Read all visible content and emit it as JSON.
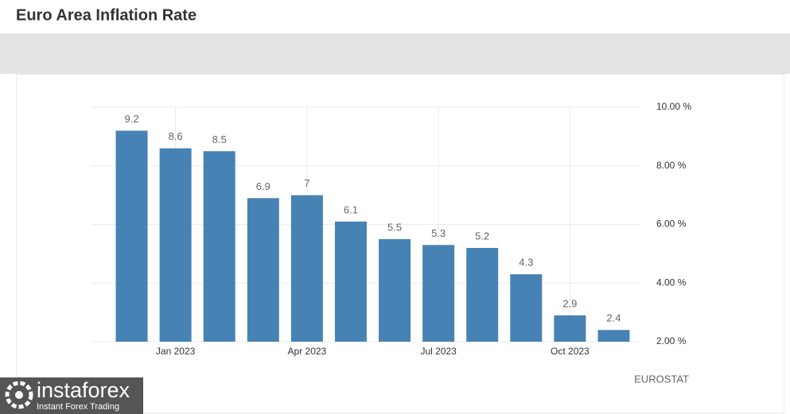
{
  "chart_data": {
    "type": "bar",
    "title": "Euro Area Inflation Rate",
    "categories": [
      null,
      "Jan 2023",
      null,
      null,
      "Apr 2023",
      null,
      null,
      "Jul 2023",
      null,
      null,
      "Oct 2023",
      null
    ],
    "values": [
      9.2,
      8.6,
      8.5,
      6.9,
      7,
      6.1,
      5.5,
      5.3,
      5.2,
      4.3,
      2.9,
      2.4
    ],
    "color": "#4682b4",
    "ylim": [
      2,
      10
    ],
    "yticks": [
      {
        "value": 2,
        "label": "2.00 %"
      },
      {
        "value": 4,
        "label": "4.00 %"
      },
      {
        "value": 6,
        "label": "6.00 %"
      },
      {
        "value": 8,
        "label": "8.00 %"
      },
      {
        "value": 10,
        "label": "10.00 %"
      }
    ],
    "grid": true,
    "source": "EUROSTAT"
  },
  "logo": {
    "name": "instaforex",
    "tagline": "Instant Forex Trading"
  }
}
